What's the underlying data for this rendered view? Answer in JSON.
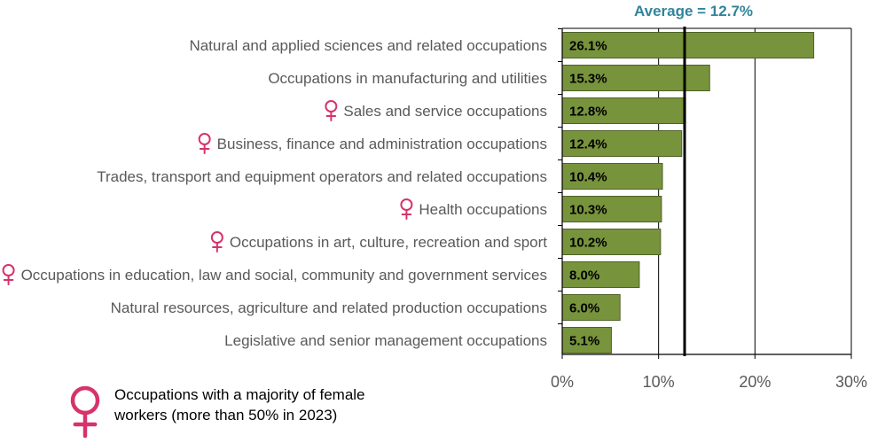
{
  "colors": {
    "bar_fill": "#77933C",
    "bar_stroke": "#4F6228",
    "axis": "#000000",
    "grid": "#000000",
    "average_text": "#31849B",
    "female_symbol": "#D6336C",
    "category_text": "#595959",
    "tick_text": "#595959"
  },
  "chart_data": {
    "type": "bar",
    "orientation": "horizontal",
    "categories": [
      "Natural and applied sciences and related occupations",
      "Occupations in manufacturing and utilities",
      "Sales and service occupations",
      "Business, finance and administration occupations",
      "Trades, transport and equipment operators and related occupations",
      "Health occupations",
      "Occupations in art, culture, recreation and sport",
      "Occupations in education, law and social, community and government services",
      "Natural resources, agriculture and related production occupations",
      "Legislative and senior management occupations"
    ],
    "values": [
      26.1,
      15.3,
      12.8,
      12.4,
      10.4,
      10.3,
      10.2,
      8.0,
      6.0,
      5.1
    ],
    "value_labels": [
      "26.1%",
      "15.3%",
      "12.8%",
      "12.4%",
      "10.4%",
      "10.3%",
      "10.2%",
      "8.0%",
      "6.0%",
      "5.1%"
    ],
    "female_majority": [
      false,
      false,
      true,
      true,
      false,
      true,
      true,
      true,
      false,
      false
    ],
    "xlim": [
      0,
      30
    ],
    "xticks": [
      0,
      10,
      20,
      30
    ],
    "xtick_labels": [
      "0%",
      "10%",
      "20%",
      "30%"
    ],
    "average_value": 12.7,
    "average_label": "Average = 12.7%",
    "grid": true,
    "legend_position": "bottom-left",
    "legend_text_lines": [
      "Occupations with a majority of female",
      "workers (more than 50% in 2023)"
    ],
    "title": "",
    "xlabel": "",
    "ylabel": ""
  }
}
